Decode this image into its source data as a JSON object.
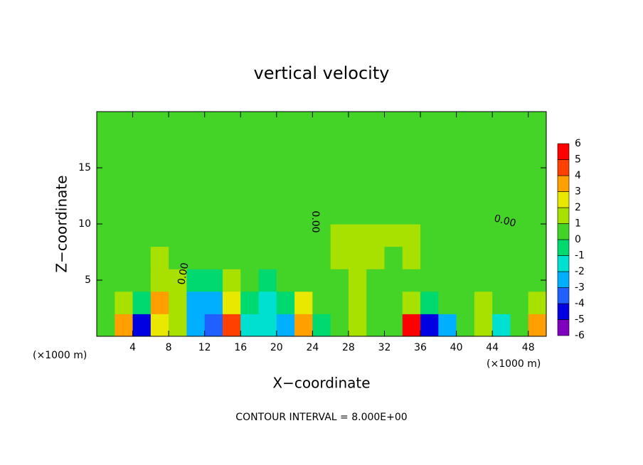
{
  "chart_data": {
    "type": "contour",
    "title": "vertical velocity",
    "x_label": "X−coordinate",
    "y_label": "Z−coordinate",
    "y_unit": "(×1000 m)",
    "x_unit": "(×1000 m)",
    "footer": "CONTOUR INTERVAL = 8.000E+00",
    "contour_labels": [
      "0.00",
      "0.00",
      "0.00"
    ],
    "xlim": [
      0,
      50
    ],
    "ylim": [
      0,
      20
    ],
    "xticks": [
      4,
      8,
      12,
      16,
      20,
      24,
      28,
      32,
      36,
      40,
      44,
      48
    ],
    "yticks": [
      5,
      10,
      15
    ],
    "x": [
      1,
      3,
      5,
      7,
      9,
      11,
      13,
      15,
      17,
      19,
      21,
      23,
      25,
      27,
      29,
      31,
      33,
      35,
      37,
      39,
      41,
      43,
      45,
      47,
      49
    ],
    "z": [
      1,
      3,
      5,
      7,
      9,
      11,
      13,
      15,
      17,
      19
    ],
    "values": [
      [
        0.5,
        3.5,
        -4.5,
        2.5,
        1.5,
        -2.5,
        -3.5,
        4.5,
        -1.5,
        -1.5,
        -2.5,
        3.5,
        -0.5,
        0.5,
        1.5,
        0.5,
        0.5,
        5.5,
        -4.5,
        -2.5,
        0.5,
        1.5,
        -1.5,
        0.5,
        3.5
      ],
      [
        0.5,
        1.5,
        -0.5,
        3.5,
        1.5,
        -2.5,
        -2.5,
        2.5,
        -0.5,
        -1.5,
        -0.5,
        2.5,
        0.5,
        0.5,
        1.5,
        0.5,
        0.5,
        1.5,
        -0.5,
        0.5,
        0.5,
        1.5,
        0.5,
        0.5,
        1.5
      ],
      [
        0.5,
        0.5,
        0.5,
        1.5,
        1.5,
        -0.5,
        -0.5,
        1.5,
        0.5,
        -0.5,
        0.5,
        0.5,
        0.5,
        0.5,
        1.5,
        0.5,
        0.5,
        0.5,
        0.5,
        0.5,
        0.5,
        0.5,
        0.5,
        0.5,
        0.5
      ],
      [
        0.5,
        0.5,
        0.5,
        1.5,
        0.5,
        0.5,
        0.5,
        0.5,
        0.5,
        0.5,
        0.5,
        0.5,
        0.5,
        1.5,
        1.5,
        1.5,
        0.5,
        1.5,
        0.5,
        0.5,
        0.5,
        0.5,
        0.5,
        0.5,
        0.5
      ],
      [
        0.5,
        0.5,
        0.5,
        0.5,
        0.5,
        0.5,
        0.5,
        0.5,
        0.5,
        0.5,
        0.5,
        0.5,
        0.5,
        1.5,
        1.5,
        1.5,
        1.5,
        1.5,
        0.5,
        0.5,
        0.5,
        0.5,
        0.5,
        0.5,
        0.5
      ],
      [
        0.5,
        0.5,
        0.5,
        0.5,
        0.5,
        0.5,
        0.5,
        0.5,
        0.5,
        0.5,
        0.5,
        0.5,
        0.5,
        0.5,
        0.5,
        0.5,
        0.5,
        0.5,
        0.5,
        0.5,
        0.5,
        0.5,
        0.5,
        0.5,
        0.5
      ],
      [
        0.5,
        0.5,
        0.5,
        0.5,
        0.5,
        0.5,
        0.5,
        0.5,
        0.5,
        0.5,
        0.5,
        0.5,
        0.5,
        0.5,
        0.5,
        0.5,
        0.5,
        0.5,
        0.5,
        0.5,
        0.5,
        0.5,
        0.5,
        0.5,
        0.5
      ],
      [
        0.5,
        0.5,
        0.5,
        0.5,
        0.5,
        0.5,
        0.5,
        0.5,
        0.5,
        0.5,
        0.5,
        0.5,
        0.5,
        0.5,
        0.5,
        0.5,
        0.5,
        0.5,
        0.5,
        0.5,
        0.5,
        0.5,
        0.5,
        0.5,
        0.5
      ],
      [
        0.5,
        0.5,
        0.5,
        0.5,
        0.5,
        0.5,
        0.5,
        0.5,
        0.5,
        0.5,
        0.5,
        0.5,
        0.5,
        0.5,
        0.5,
        0.5,
        0.5,
        0.5,
        0.5,
        0.5,
        0.5,
        0.5,
        0.5,
        0.5,
        0.5
      ],
      [
        0.5,
        0.5,
        0.5,
        0.5,
        0.5,
        0.5,
        0.5,
        0.5,
        0.5,
        0.5,
        0.5,
        0.5,
        0.5,
        0.5,
        0.5,
        0.5,
        0.5,
        0.5,
        0.5,
        0.5,
        0.5,
        0.5,
        0.5,
        0.5,
        0.5
      ]
    ],
    "colorbar": {
      "levels": [
        -6,
        -5,
        -4,
        -3,
        -2,
        -1,
        0,
        1,
        2,
        3,
        4,
        5,
        6
      ],
      "colors": [
        "#8000c0",
        "#0000e0",
        "#2060ff",
        "#00b0ff",
        "#00e0d0",
        "#00d870",
        "#44d428",
        "#a8e000",
        "#e8e800",
        "#ffa000",
        "#ff4000",
        "#ff0000",
        "#f08080"
      ]
    }
  }
}
